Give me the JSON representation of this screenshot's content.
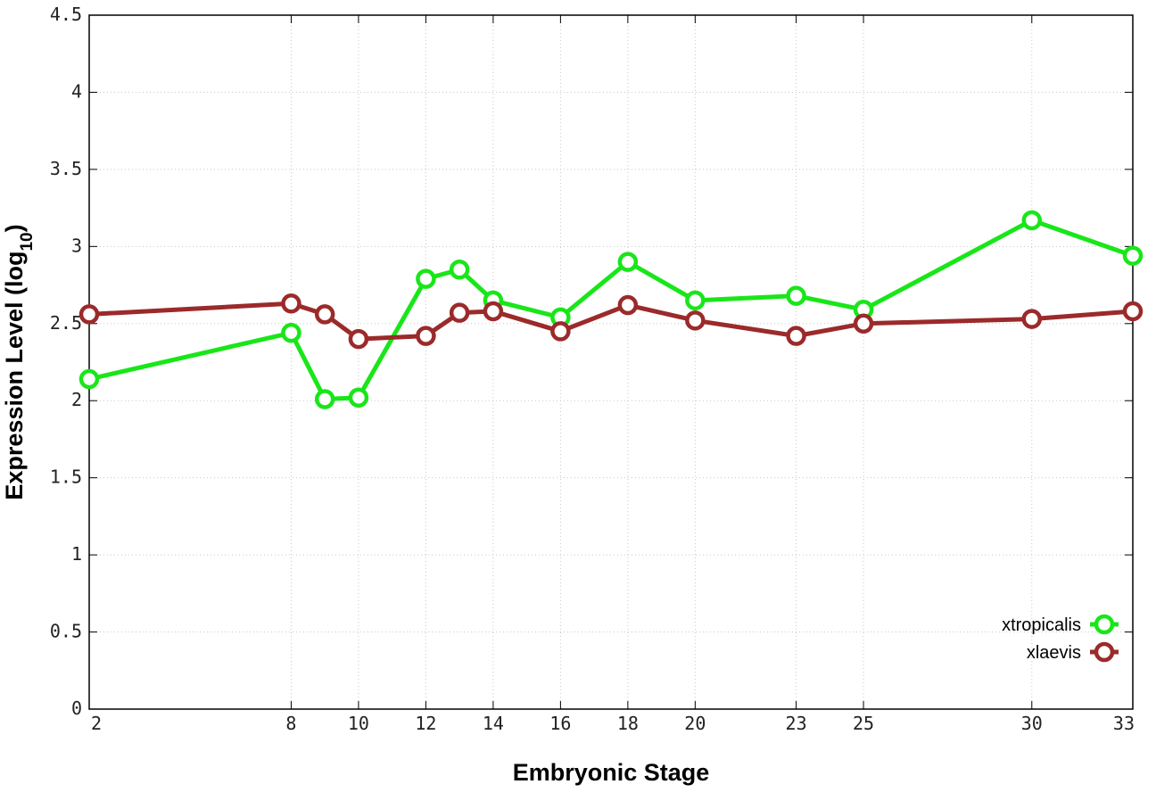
{
  "chart_data": {
    "type": "line",
    "xlabel": "Embryonic Stage",
    "ylabel_main": "Expression Level (log",
    "ylabel_sub": "10",
    "ylabel_close": ")",
    "ylim": [
      0,
      4.5
    ],
    "y_ticks": [
      0,
      0.5,
      1,
      1.5,
      2,
      2.5,
      3,
      3.5,
      4,
      4.5
    ],
    "y_tick_labels": [
      "0",
      "0.5",
      "1",
      "1.5",
      "2",
      "2.5",
      "3",
      "3.5",
      "4",
      "4.5"
    ],
    "x_ticks": [
      2,
      8,
      10,
      12,
      14,
      16,
      18,
      20,
      23,
      25,
      30,
      33
    ],
    "x_tick_labels": [
      "2",
      "8",
      "10",
      "12",
      "14",
      "16",
      "18",
      "20",
      "23",
      "25",
      "30",
      "33"
    ],
    "grid": true,
    "legend_position": "bottom-right",
    "series": [
      {
        "name": "xtropicalis",
        "color": "#19e619",
        "x": [
          2,
          8,
          9,
          10,
          12,
          13,
          14,
          16,
          18,
          20,
          23,
          25,
          30,
          33
        ],
        "y": [
          2.14,
          2.44,
          2.01,
          2.02,
          2.79,
          2.85,
          2.65,
          2.54,
          2.9,
          2.65,
          2.68,
          2.59,
          3.17,
          2.94
        ]
      },
      {
        "name": "xlaevis",
        "color": "#9b2a2a",
        "x": [
          2,
          8,
          9,
          10,
          12,
          13,
          14,
          16,
          18,
          20,
          23,
          25,
          30,
          33
        ],
        "y": [
          2.56,
          2.63,
          2.56,
          2.4,
          2.42,
          2.57,
          2.58,
          2.45,
          2.62,
          2.52,
          2.42,
          2.5,
          2.53,
          2.58
        ]
      }
    ]
  }
}
